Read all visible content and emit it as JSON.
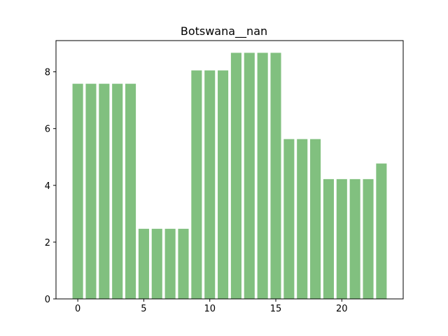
{
  "chart_data": {
    "type": "bar",
    "title": "Botswana__nan",
    "xlabel": "",
    "ylabel": "",
    "x": [
      0,
      1,
      2,
      3,
      4,
      5,
      6,
      7,
      8,
      9,
      10,
      11,
      12,
      13,
      14,
      15,
      16,
      17,
      18,
      19,
      20,
      21,
      22,
      23
    ],
    "values": [
      7.58,
      7.58,
      7.58,
      7.58,
      7.58,
      2.47,
      2.47,
      2.47,
      2.47,
      8.05,
      8.05,
      8.05,
      8.67,
      8.67,
      8.67,
      8.67,
      5.63,
      5.63,
      5.63,
      4.22,
      4.22,
      4.22,
      4.22,
      4.77
    ],
    "xlim": [
      -1.65,
      24.65
    ],
    "ylim": [
      0,
      9.1
    ],
    "xticks": [
      0,
      5,
      10,
      15,
      20
    ],
    "yticks": [
      0,
      2,
      4,
      6,
      8
    ],
    "bar_color": "#81c07f",
    "grid": false
  }
}
